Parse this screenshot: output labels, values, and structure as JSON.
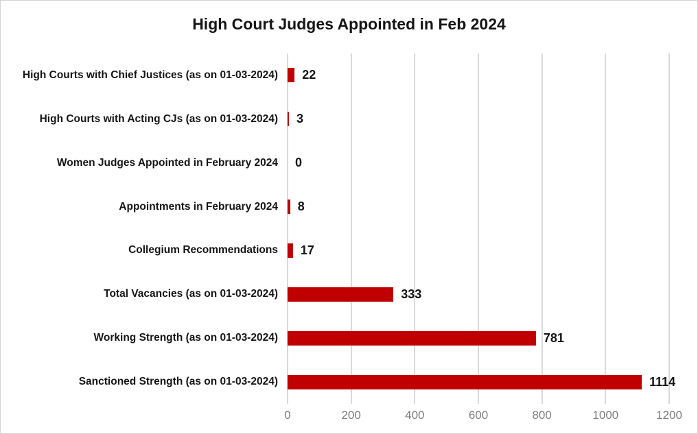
{
  "chart_data": {
    "type": "bar",
    "orientation": "horizontal",
    "title": "High Court Judges Appointed in Feb 2024",
    "categories": [
      "High Courts with Chief Justices (as on 01-03-2024)",
      "High Courts with Acting CJs (as on 01-03-2024)",
      "Women Judges Appointed in February 2024",
      "Appointments in February 2024",
      "Collegium Recommendations",
      "Total Vacancies (as on 01-03-2024)",
      "Working Strength (as on 01-03-2024)",
      "Sanctioned Strength (as on 01-03-2024)"
    ],
    "values": [
      22,
      3,
      0,
      8,
      17,
      333,
      781,
      1114
    ],
    "data_labels": [
      "22",
      "3",
      "0",
      "8",
      "17",
      "333",
      "781",
      "1114"
    ],
    "xlim": [
      0,
      1200
    ],
    "x_ticks": [
      0,
      200,
      400,
      600,
      800,
      1000,
      1200
    ],
    "grid": true,
    "legend": "none",
    "bar_color": "#c00000",
    "gridline_color": "#d9d9d9",
    "tick_label_color": "#7d7d7d",
    "text_color": "#151515",
    "background_color": "#ffffff",
    "frame_border_color": "#d2d2d2"
  }
}
